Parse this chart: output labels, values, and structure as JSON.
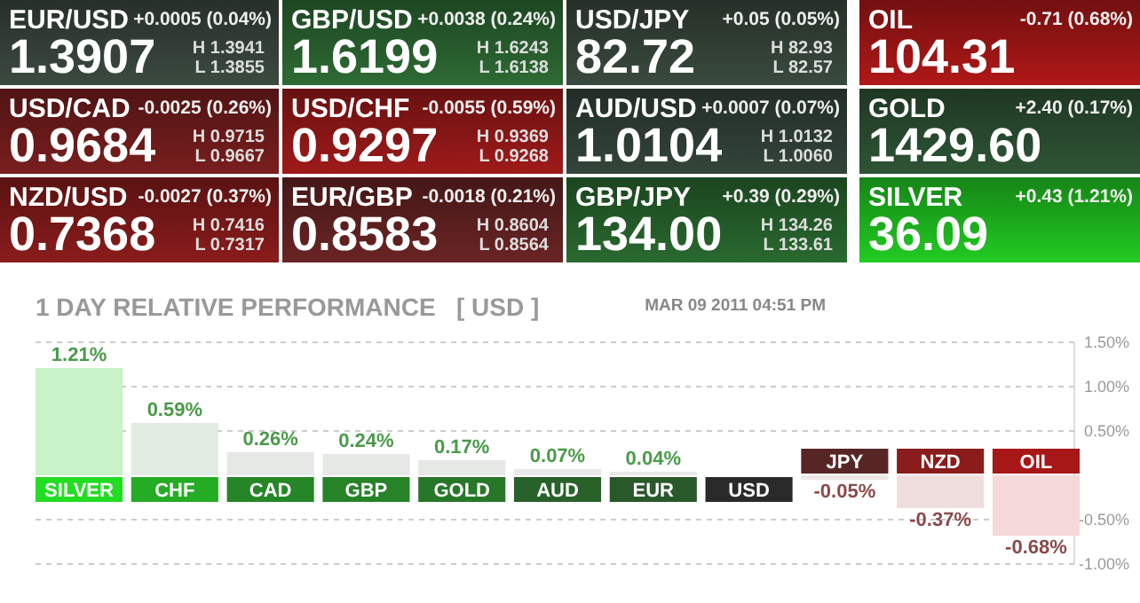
{
  "chart_data": [
    {
      "type": "other",
      "title": "EUR/USD",
      "annotations": [
        "1.3907",
        "+0.0005 (0.04%)",
        "H 1.3941",
        "L 1.3855"
      ],
      "color": "#3c4a40"
    },
    {
      "type": "other",
      "title": "GBP/USD",
      "annotations": [
        "1.6199",
        "+0.0038 (0.24%)",
        "H 1.6243",
        "L 1.6138"
      ],
      "color": "#2e6b34"
    },
    {
      "type": "other",
      "title": "USD/JPY",
      "annotations": [
        "82.72",
        "+0.05 (0.05%)",
        "H 82.93",
        "L 82.57"
      ],
      "color": "#3a4a3e"
    },
    {
      "type": "other",
      "title": "OIL",
      "annotations": [
        "104.31",
        "-0.71 (0.68%)"
      ],
      "color": "#b01818"
    },
    {
      "type": "other",
      "title": "USD/CAD",
      "annotations": [
        "0.9684",
        "-0.0025 (0.26%)",
        "H 0.9715",
        "L 0.9667"
      ],
      "color": "#7a1e1e"
    },
    {
      "type": "other",
      "title": "USD/CHF",
      "annotations": [
        "0.9297",
        "-0.0055 (0.59%)",
        "H 0.9369",
        "L 0.9268"
      ],
      "color": "#a01a1a"
    },
    {
      "type": "other",
      "title": "AUD/USD",
      "annotations": [
        "1.0104",
        "+0.0007 (0.07%)",
        "H 1.0132",
        "L 1.0060"
      ],
      "color": "#34453a"
    },
    {
      "type": "other",
      "title": "GOLD",
      "annotations": [
        "1429.60",
        "+2.40 (0.17%)"
      ],
      "color": "#2f5535"
    },
    {
      "type": "other",
      "title": "NZD/USD",
      "annotations": [
        "0.7368",
        "-0.0027 (0.37%)",
        "H 0.7416",
        "L 0.7317"
      ],
      "color": "#8a1c1c"
    },
    {
      "type": "other",
      "title": "EUR/GBP",
      "annotations": [
        "0.8583",
        "-0.0018 (0.21%)",
        "H 0.8604",
        "L 0.8564"
      ],
      "color": "#6a2424"
    },
    {
      "type": "other",
      "title": "GBP/JPY",
      "annotations": [
        "134.00",
        "+0.39 (0.29%)",
        "H 134.26",
        "L 133.61"
      ],
      "color": "#2a6a30"
    },
    {
      "type": "other",
      "title": "SILVER",
      "annotations": [
        "36.09",
        "+0.43 (1.21%)"
      ],
      "color": "#22cc22"
    },
    {
      "type": "bar",
      "title": "1 DAY RELATIVE PERFORMANCE   [ USD ]",
      "subtitle": "MAR 09 2011 04:51 PM",
      "categories": [
        "SILVER",
        "CHF",
        "CAD",
        "GBP",
        "GOLD",
        "AUD",
        "EUR",
        "USD",
        "JPY",
        "NZD",
        "OIL"
      ],
      "values": [
        1.21,
        0.59,
        0.26,
        0.24,
        0.17,
        0.07,
        0.04,
        0,
        -0.05,
        -0.37,
        -0.68
      ],
      "value_labels": [
        "1.21%",
        "0.59%",
        "0.26%",
        "0.24%",
        "0.17%",
        "0.07%",
        "0.04%",
        null,
        "-0.05%",
        "-0.37%",
        "-0.68%"
      ],
      "colors": [
        "#c8f2c8",
        "#e2ebe2",
        "#e6e8e6",
        "#e6e8e6",
        "#e6e8e6",
        "#e8e8e8",
        "#e8e8e8",
        "#e8e8e8",
        "#ede6e6",
        "#f0dede",
        "#f5d8d8"
      ],
      "ylim": [
        -1,
        1.5
      ],
      "yticks": [
        {
          "value": -1,
          "label": "-1.00%"
        },
        {
          "value": -0.5,
          "label": "-0.50%"
        },
        {
          "value": 0.5,
          "label": "0.50%"
        },
        {
          "value": 1,
          "label": "1.00%"
        },
        {
          "value": 1.5,
          "label": "1.50%"
        }
      ],
      "grid": "y"
    }
  ]
}
